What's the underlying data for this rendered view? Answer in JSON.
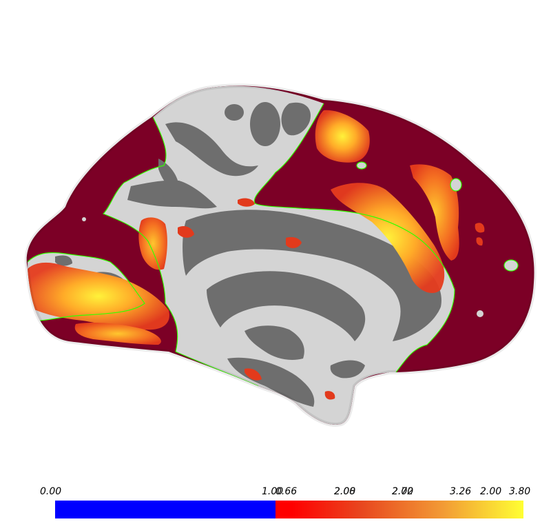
{
  "colorbar": {
    "left_ticks": [
      "0.00",
      "1.00"
    ],
    "right_ticks": [
      "0.66",
      "2.08",
      "2.72",
      "3.26",
      "3.80"
    ],
    "overlap_ticks": [
      "1.00",
      "2.00",
      "2.00",
      "2.00"
    ],
    "colors": {
      "blue_segment": "#0000ff",
      "red_start": "#ff0000",
      "heat_end": "#ffff33"
    }
  },
  "surface": {
    "view": "medial",
    "colors": {
      "background_activation": "#7c0026",
      "gyri": "#d4d4d4",
      "sulci": "#6e6e6e",
      "roi_outline": "#33ff00",
      "hotspot_core": "#ffe64a",
      "hotspot_edge": "#e8421c"
    }
  }
}
